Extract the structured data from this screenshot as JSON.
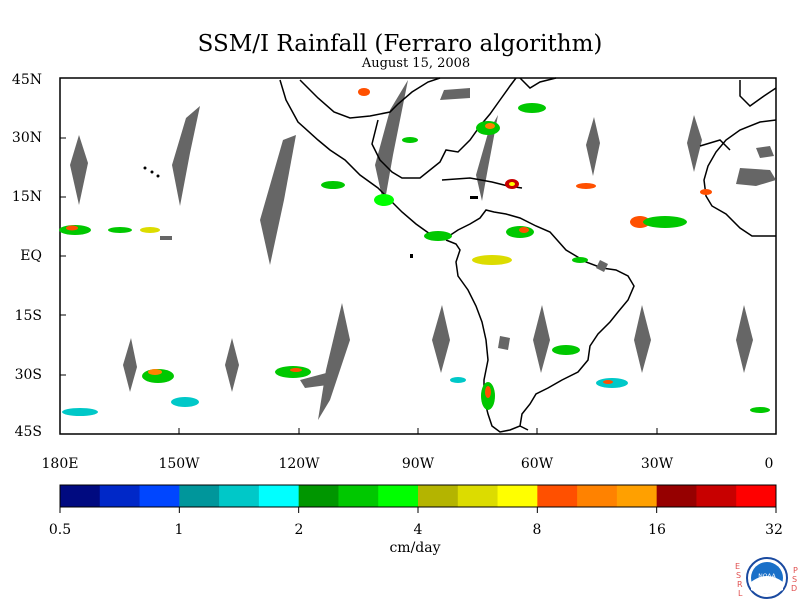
{
  "title": "SSM/I Rainfall (Ferraro algorithm)",
  "subtitle": "August 15, 2008",
  "map": {
    "lat_labels": [
      "45N",
      "30N",
      "15N",
      "EQ",
      "15S",
      "30S",
      "45S"
    ],
    "lon_labels": [
      "180E",
      "150W",
      "120W",
      "90W",
      "60W",
      "30W",
      "0"
    ],
    "land_color": "#000000",
    "no_data_color": "#666666"
  },
  "colorbar": {
    "colors": [
      "#000a80",
      "#0028c8",
      "#0046ff",
      "#00969b",
      "#00c8c8",
      "#00ffff",
      "#009600",
      "#00c800",
      "#00ff00",
      "#b4b400",
      "#dcdc00",
      "#ffff00",
      "#ff5000",
      "#ff8200",
      "#ffa000",
      "#960000",
      "#c80000",
      "#ff0000"
    ],
    "tick_values": [
      "0.5",
      "1",
      "2",
      "4",
      "8",
      "16",
      "32"
    ],
    "unit": "cm/day"
  },
  "logo": {
    "left_letters": [
      "E",
      "S",
      "R",
      "L"
    ],
    "right_letters": [
      "P",
      "S",
      "D"
    ],
    "center_text": "NOAA"
  }
}
